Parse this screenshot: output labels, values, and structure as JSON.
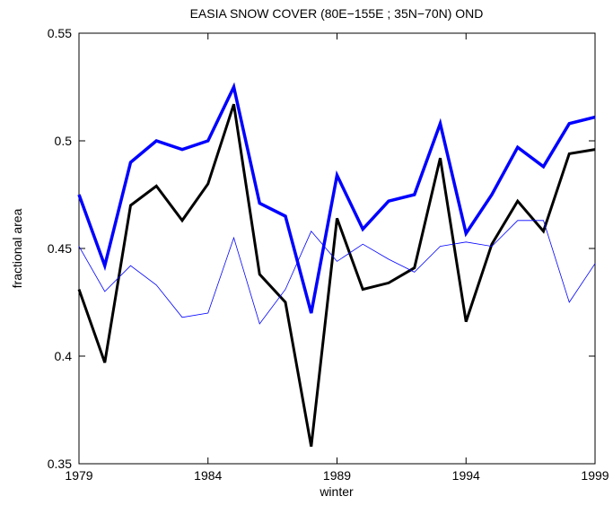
{
  "chart_data": {
    "type": "line",
    "title": "EASIA SNOW COVER (80E−155E ; 35N−70N) OND",
    "x_label": "winter",
    "y_label": "fractional area",
    "x": [
      1979,
      1980,
      1981,
      1982,
      1983,
      1984,
      1985,
      1986,
      1987,
      1988,
      1989,
      1990,
      1991,
      1992,
      1993,
      1994,
      1995,
      1996,
      1997,
      1998,
      1999
    ],
    "xlim": [
      1979,
      1999
    ],
    "xticks": [
      1979,
      1984,
      1989,
      1994,
      1999
    ],
    "ylim": [
      0.35,
      0.55
    ],
    "yticks": [
      0.35,
      0.4,
      0.45,
      0.5,
      0.55
    ],
    "series": [
      {
        "color": "#0000ff",
        "width": 3.5,
        "values": [
          0.475,
          0.442,
          0.49,
          0.5,
          0.496,
          0.5,
          0.525,
          0.471,
          0.465,
          0.42,
          0.484,
          0.459,
          0.472,
          0.475,
          0.508,
          0.457,
          0.475,
          0.497,
          0.488,
          0.508,
          0.511
        ]
      },
      {
        "color": "#000000",
        "width": 3,
        "values": [
          0.431,
          0.397,
          0.47,
          0.479,
          0.463,
          0.48,
          0.517,
          0.438,
          0.425,
          0.358,
          0.464,
          0.431,
          0.434,
          0.441,
          0.492,
          0.416,
          0.452,
          0.472,
          0.458,
          0.494,
          0.496
        ]
      },
      {
        "color": "#0000ff",
        "width": 0.8,
        "values": [
          0.451,
          0.43,
          0.442,
          0.433,
          0.418,
          0.42,
          0.455,
          0.415,
          0.431,
          0.458,
          0.444,
          0.452,
          0.445,
          0.439,
          0.451,
          0.453,
          0.451,
          0.463,
          0.463,
          0.425,
          0.443
        ]
      }
    ]
  }
}
